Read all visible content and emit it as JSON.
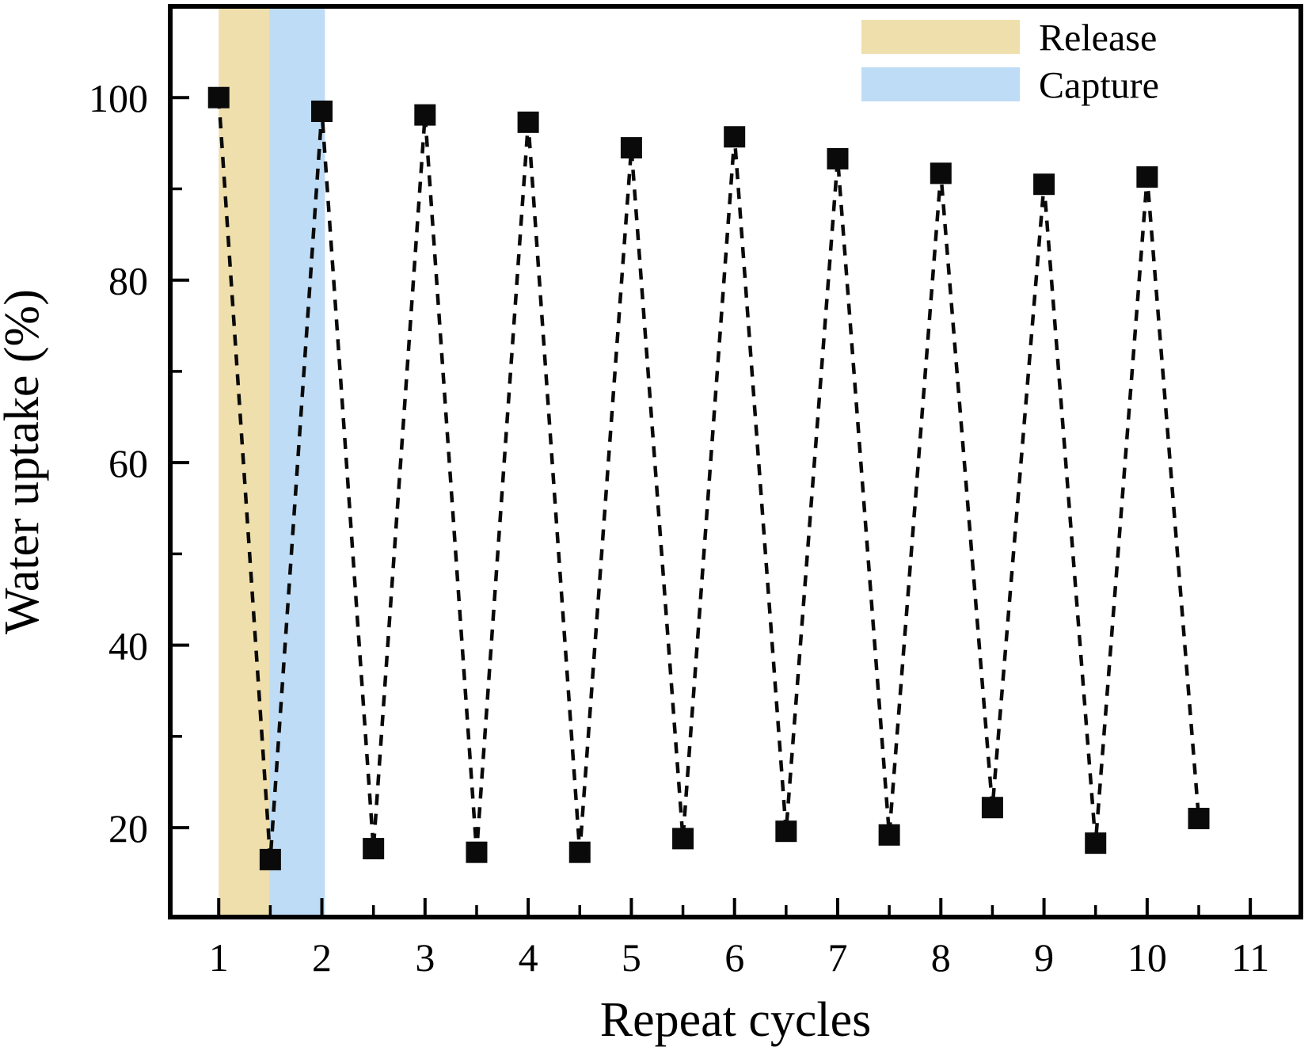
{
  "figure": {
    "background": "#ffffff",
    "frame_color": "#000000"
  },
  "chart_data": {
    "type": "line",
    "title": "",
    "xlabel": "Repeat cycles",
    "ylabel": "Water uptake (%)",
    "xlim": [
      0.53,
      11.49
    ],
    "ylim": [
      10.2,
      110
    ],
    "grid": false,
    "legend_position": "top-right-inside",
    "x_major_ticks": [
      1,
      2,
      3,
      4,
      5,
      6,
      7,
      8,
      9,
      10,
      11
    ],
    "x_minor_ticks": [
      1.5,
      2.5,
      3.5,
      4.5,
      5.5,
      6.5,
      7.5,
      8.5,
      9.5,
      10.5
    ],
    "y_major_ticks": [
      20,
      40,
      60,
      80,
      100
    ],
    "y_minor_ticks": [
      30,
      50,
      70,
      90
    ],
    "series": [
      {
        "name": "water-uptake-cycles",
        "marker": "square",
        "marker_color": "#0a0a0a",
        "line_style": "dashed",
        "line_color": "#0a0a0a",
        "x": [
          1,
          1.5,
          2,
          2.5,
          3,
          3.5,
          4,
          4.5,
          5,
          5.5,
          6,
          6.5,
          7,
          7.5,
          8,
          8.5,
          9,
          9.5,
          10,
          10.5
        ],
        "y": [
          100,
          16.5,
          98.5,
          17.7,
          98.1,
          17.3,
          97.3,
          17.3,
          94.5,
          18.8,
          95.7,
          19.6,
          93.3,
          19.2,
          91.7,
          22.2,
          90.5,
          18.3,
          91.3,
          21.0
        ]
      }
    ],
    "bands": [
      {
        "label": "Release",
        "color": "#efdfac",
        "x1": 1.0,
        "x2": 1.49
      },
      {
        "label": "Capture",
        "color": "#bedcf6",
        "x1": 1.49,
        "x2": 2.03
      }
    ]
  },
  "legend": {
    "items": [
      {
        "label": "Release",
        "color": "#efdfac"
      },
      {
        "label": "Capture",
        "color": "#bedcf6"
      }
    ]
  }
}
